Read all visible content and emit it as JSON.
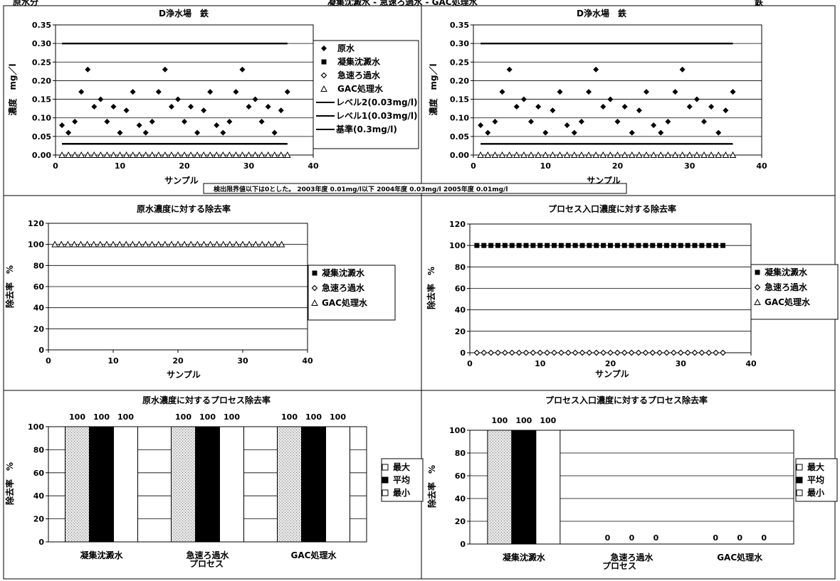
{
  "header": {
    "left": "原水分",
    "center": "凝集沈澱水 - 急速ろ過水 - GAC処理水",
    "right": "鉄"
  },
  "note": "検出限界値以下は0とした。 2003年度 0.01mg/l以下 2004年度 0.03mg/l 2005年度 0.01mg/l",
  "colors": {
    "line": "#000000",
    "grid": "#000000",
    "stipple": "#bdbdbd"
  },
  "chart_data": [
    {
      "id": "conc-left",
      "type": "scatter",
      "title": "D浄水場　鉄",
      "xlabel": "サンプル",
      "ylabel": "濃度　mg／l",
      "xlim": [
        0,
        40
      ],
      "xticks": [
        0,
        10,
        20,
        30,
        40
      ],
      "xticklabels": [
        "0",
        "10",
        "20",
        "30",
        "40"
      ],
      "ylim": [
        0,
        0.35
      ],
      "yticks": [
        0,
        0.05,
        0.1,
        0.15,
        0.2,
        0.25,
        0.3,
        0.35
      ],
      "yticklabels": [
        "0.00",
        "0.05",
        "0.10",
        "0.15",
        "0.20",
        "0.25",
        "0.30",
        "0.35"
      ],
      "grid": true,
      "legend": "right",
      "series": [
        {
          "name": "原水",
          "marker": "diamond",
          "x": [
            1,
            2,
            3,
            4,
            5,
            6,
            7,
            8,
            9,
            10,
            11,
            12,
            13,
            14,
            15,
            16,
            17,
            18,
            19,
            20,
            21,
            22,
            23,
            24,
            25,
            26,
            27,
            28,
            29,
            30,
            31,
            32,
            33,
            34,
            35,
            36
          ],
          "y": [
            0.08,
            0.06,
            0.09,
            0.17,
            0.23,
            0.13,
            0.15,
            0.09,
            0.13,
            0.06,
            0.12,
            0.17,
            0.08,
            0.06,
            0.09,
            0.17,
            0.23,
            0.13,
            0.15,
            0.09,
            0.13,
            0.06,
            0.12,
            0.17,
            0.08,
            0.06,
            0.09,
            0.17,
            0.23,
            0.13,
            0.15,
            0.09,
            0.13,
            0.06,
            0.12,
            0.17
          ]
        },
        {
          "name": "凝集沈澱水",
          "marker": "square",
          "x": [],
          "y": []
        },
        {
          "name": "急速ろ過水",
          "marker": "open-diamond",
          "x": [],
          "y": []
        },
        {
          "name": "GAC処理水",
          "marker": "triangle",
          "x": [
            1,
            2,
            3,
            4,
            5,
            6,
            7,
            8,
            9,
            10,
            11,
            12,
            13,
            14,
            15,
            16,
            17,
            18,
            19,
            20,
            21,
            22,
            23,
            24,
            25,
            26,
            27,
            28,
            29,
            30,
            31,
            32,
            33,
            34,
            35,
            36
          ],
          "y": [
            0,
            0,
            0,
            0,
            0,
            0,
            0,
            0,
            0,
            0,
            0,
            0,
            0,
            0,
            0,
            0,
            0,
            0,
            0,
            0,
            0,
            0,
            0,
            0,
            0,
            0,
            0,
            0,
            0,
            0,
            0,
            0,
            0,
            0,
            0,
            0
          ]
        }
      ],
      "hlines": [
        {
          "name": "レベル2(0.03mg/l)",
          "y": 0.03,
          "x": [
            1,
            36
          ]
        },
        {
          "name": "レベル1(0.03mg/l)",
          "y": 0.03,
          "x": [
            1,
            36
          ]
        },
        {
          "name": "基準(0.3mg/l)",
          "y": 0.3,
          "x": [
            1,
            36
          ]
        }
      ]
    },
    {
      "id": "conc-right",
      "type": "scatter",
      "title": "D浄水場　鉄",
      "xlabel": "サンプル",
      "ylabel": "濃度　mg／l",
      "xlim": [
        0,
        40
      ],
      "xticks": [
        0,
        10,
        20,
        30,
        40
      ],
      "xticklabels": [
        "0",
        "10",
        "20",
        "30",
        "40"
      ],
      "ylim": [
        0,
        0.35
      ],
      "yticks": [
        0,
        0.05,
        0.1,
        0.15,
        0.2,
        0.25,
        0.3,
        0.35
      ],
      "yticklabels": [
        "0.00",
        "0.05",
        "0.10",
        "0.15",
        "0.20",
        "0.25",
        "0.30",
        "0.35"
      ],
      "grid": true,
      "legend": "none",
      "series": [
        {
          "name": "原水",
          "marker": "diamond",
          "x": [
            1,
            2,
            3,
            4,
            5,
            6,
            7,
            8,
            9,
            10,
            11,
            12,
            13,
            14,
            15,
            16,
            17,
            18,
            19,
            20,
            21,
            22,
            23,
            24,
            25,
            26,
            27,
            28,
            29,
            30,
            31,
            32,
            33,
            34,
            35,
            36
          ],
          "y": [
            0.08,
            0.06,
            0.09,
            0.17,
            0.23,
            0.13,
            0.15,
            0.09,
            0.13,
            0.06,
            0.12,
            0.17,
            0.08,
            0.06,
            0.09,
            0.17,
            0.23,
            0.13,
            0.15,
            0.09,
            0.13,
            0.06,
            0.12,
            0.17,
            0.08,
            0.06,
            0.09,
            0.17,
            0.23,
            0.13,
            0.15,
            0.09,
            0.13,
            0.06,
            0.12,
            0.17
          ]
        },
        {
          "name": "GAC処理水",
          "marker": "triangle",
          "x": [
            1,
            2,
            3,
            4,
            5,
            6,
            7,
            8,
            9,
            10,
            11,
            12,
            13,
            14,
            15,
            16,
            17,
            18,
            19,
            20,
            21,
            22,
            23,
            24,
            25,
            26,
            27,
            28,
            29,
            30,
            31,
            32,
            33,
            34,
            35,
            36
          ],
          "y": [
            0,
            0,
            0,
            0,
            0,
            0,
            0,
            0,
            0,
            0,
            0,
            0,
            0,
            0,
            0,
            0,
            0,
            0,
            0,
            0,
            0,
            0,
            0,
            0,
            0,
            0,
            0,
            0,
            0,
            0,
            0,
            0,
            0,
            0,
            0,
            0
          ]
        }
      ],
      "hlines": [
        {
          "name": "",
          "y": 0.03,
          "x": [
            1,
            36
          ]
        },
        {
          "name": "",
          "y": 0.3,
          "x": [
            1,
            36
          ]
        }
      ]
    },
    {
      "id": "rem-left",
      "type": "scatter",
      "title": "原水濃度に対する除去率",
      "xlabel": "サンプル",
      "ylabel": "除去率　%",
      "xlim": [
        0,
        40
      ],
      "xticks": [
        0,
        10,
        20,
        30,
        40
      ],
      "xticklabels": [
        "0",
        "10",
        "20",
        "30",
        "40"
      ],
      "ylim": [
        0,
        120
      ],
      "yticks": [
        0,
        20,
        40,
        60,
        80,
        100,
        120
      ],
      "yticklabels": [
        "0",
        "20",
        "40",
        "60",
        "80",
        "100",
        "120"
      ],
      "grid": true,
      "legend": "right",
      "series": [
        {
          "name": "凝集沈澱水",
          "marker": "square",
          "x": [],
          "y": []
        },
        {
          "name": "急速ろ過水",
          "marker": "open-diamond",
          "x": [],
          "y": []
        },
        {
          "name": "GAC処理水",
          "marker": "triangle",
          "x": [
            1,
            2,
            3,
            4,
            5,
            6,
            7,
            8,
            9,
            10,
            11,
            12,
            13,
            14,
            15,
            16,
            17,
            18,
            19,
            20,
            21,
            22,
            23,
            24,
            25,
            26,
            27,
            28,
            29,
            30,
            31,
            32,
            33,
            34,
            35,
            36
          ],
          "y": [
            100,
            100,
            100,
            100,
            100,
            100,
            100,
            100,
            100,
            100,
            100,
            100,
            100,
            100,
            100,
            100,
            100,
            100,
            100,
            100,
            100,
            100,
            100,
            100,
            100,
            100,
            100,
            100,
            100,
            100,
            100,
            100,
            100,
            100,
            100,
            100
          ]
        }
      ]
    },
    {
      "id": "rem-right",
      "type": "scatter",
      "title": "プロセス入口濃度に対する除去率",
      "xlabel": "サンプル",
      "ylabel": "除去率　%",
      "xlim": [
        0,
        40
      ],
      "xticks": [
        0,
        10,
        20,
        30,
        40
      ],
      "xticklabels": [
        "0",
        "10",
        "20",
        "30",
        "40"
      ],
      "ylim": [
        0,
        120
      ],
      "yticks": [
        0,
        20,
        40,
        60,
        80,
        100,
        120
      ],
      "yticklabels": [
        "0",
        "20",
        "40",
        "60",
        "80",
        "100",
        "120"
      ],
      "grid": true,
      "legend": "right",
      "series": [
        {
          "name": "凝集沈澱水",
          "marker": "square",
          "x": [
            1,
            2,
            3,
            4,
            5,
            6,
            7,
            8,
            9,
            10,
            11,
            12,
            13,
            14,
            15,
            16,
            17,
            18,
            19,
            20,
            21,
            22,
            23,
            24,
            25,
            26,
            27,
            28,
            29,
            30,
            31,
            32,
            33,
            34,
            35,
            36
          ],
          "y": [
            100,
            100,
            100,
            100,
            100,
            100,
            100,
            100,
            100,
            100,
            100,
            100,
            100,
            100,
            100,
            100,
            100,
            100,
            100,
            100,
            100,
            100,
            100,
            100,
            100,
            100,
            100,
            100,
            100,
            100,
            100,
            100,
            100,
            100,
            100,
            100
          ]
        },
        {
          "name": "急速ろ過水",
          "marker": "open-diamond",
          "x": [
            1,
            2,
            3,
            4,
            5,
            6,
            7,
            8,
            9,
            10,
            11,
            12,
            13,
            14,
            15,
            16,
            17,
            18,
            19,
            20,
            21,
            22,
            23,
            24,
            25,
            26,
            27,
            28,
            29,
            30,
            31,
            32,
            33,
            34,
            35,
            36
          ],
          "y": [
            0,
            0,
            0,
            0,
            0,
            0,
            0,
            0,
            0,
            0,
            0,
            0,
            0,
            0,
            0,
            0,
            0,
            0,
            0,
            0,
            0,
            0,
            0,
            0,
            0,
            0,
            0,
            0,
            0,
            0,
            0,
            0,
            0,
            0,
            0,
            0
          ]
        },
        {
          "name": "GAC処理水",
          "marker": "triangle",
          "x": [],
          "y": []
        }
      ]
    },
    {
      "id": "bar-left",
      "type": "bar",
      "title": "原水濃度に対するプロセス除去率",
      "xlabel": "プロセス",
      "ylabel": "除去率　%",
      "ylim": [
        0,
        100
      ],
      "yticks": [
        0,
        20,
        40,
        60,
        80,
        100
      ],
      "yticklabels": [
        "0",
        "20",
        "40",
        "60",
        "80",
        "100"
      ],
      "grid": true,
      "legend": "right",
      "categories": [
        "凝集沈澱水",
        "急速ろ過水",
        "GAC処理水"
      ],
      "series": [
        {
          "name": "最大",
          "fill": "stipple",
          "values": [
            100,
            100,
            100
          ],
          "labels": [
            "100",
            "100",
            "100"
          ]
        },
        {
          "name": "平均",
          "fill": "black",
          "values": [
            100,
            100,
            100
          ],
          "labels": [
            "100",
            "100",
            "100"
          ]
        },
        {
          "name": "最小",
          "fill": "white",
          "values": [
            100,
            100,
            100
          ],
          "labels": [
            "100",
            "100",
            "100"
          ]
        }
      ]
    },
    {
      "id": "bar-right",
      "type": "bar",
      "title": "プロセス入口濃度に対するプロセス除去率",
      "xlabel": "プロセス",
      "ylabel": "除去率　%",
      "ylim": [
        0,
        100
      ],
      "yticks": [
        0,
        20,
        40,
        60,
        80,
        100
      ],
      "yticklabels": [
        "0",
        "20",
        "40",
        "60",
        "80",
        "100"
      ],
      "grid": true,
      "legend": "right",
      "categories": [
        "凝集沈澱水",
        "急速ろ過水",
        "GAC処理水"
      ],
      "series": [
        {
          "name": "最大",
          "fill": "stipple",
          "values": [
            100,
            0,
            0
          ],
          "labels": [
            "100",
            "0",
            "0"
          ]
        },
        {
          "name": "平均",
          "fill": "black",
          "values": [
            100,
            0,
            0
          ],
          "labels": [
            "100",
            "0",
            "0"
          ]
        },
        {
          "name": "最小",
          "fill": "white",
          "values": [
            100,
            0,
            0
          ],
          "labels": [
            "100",
            "0",
            "0"
          ]
        }
      ]
    }
  ]
}
